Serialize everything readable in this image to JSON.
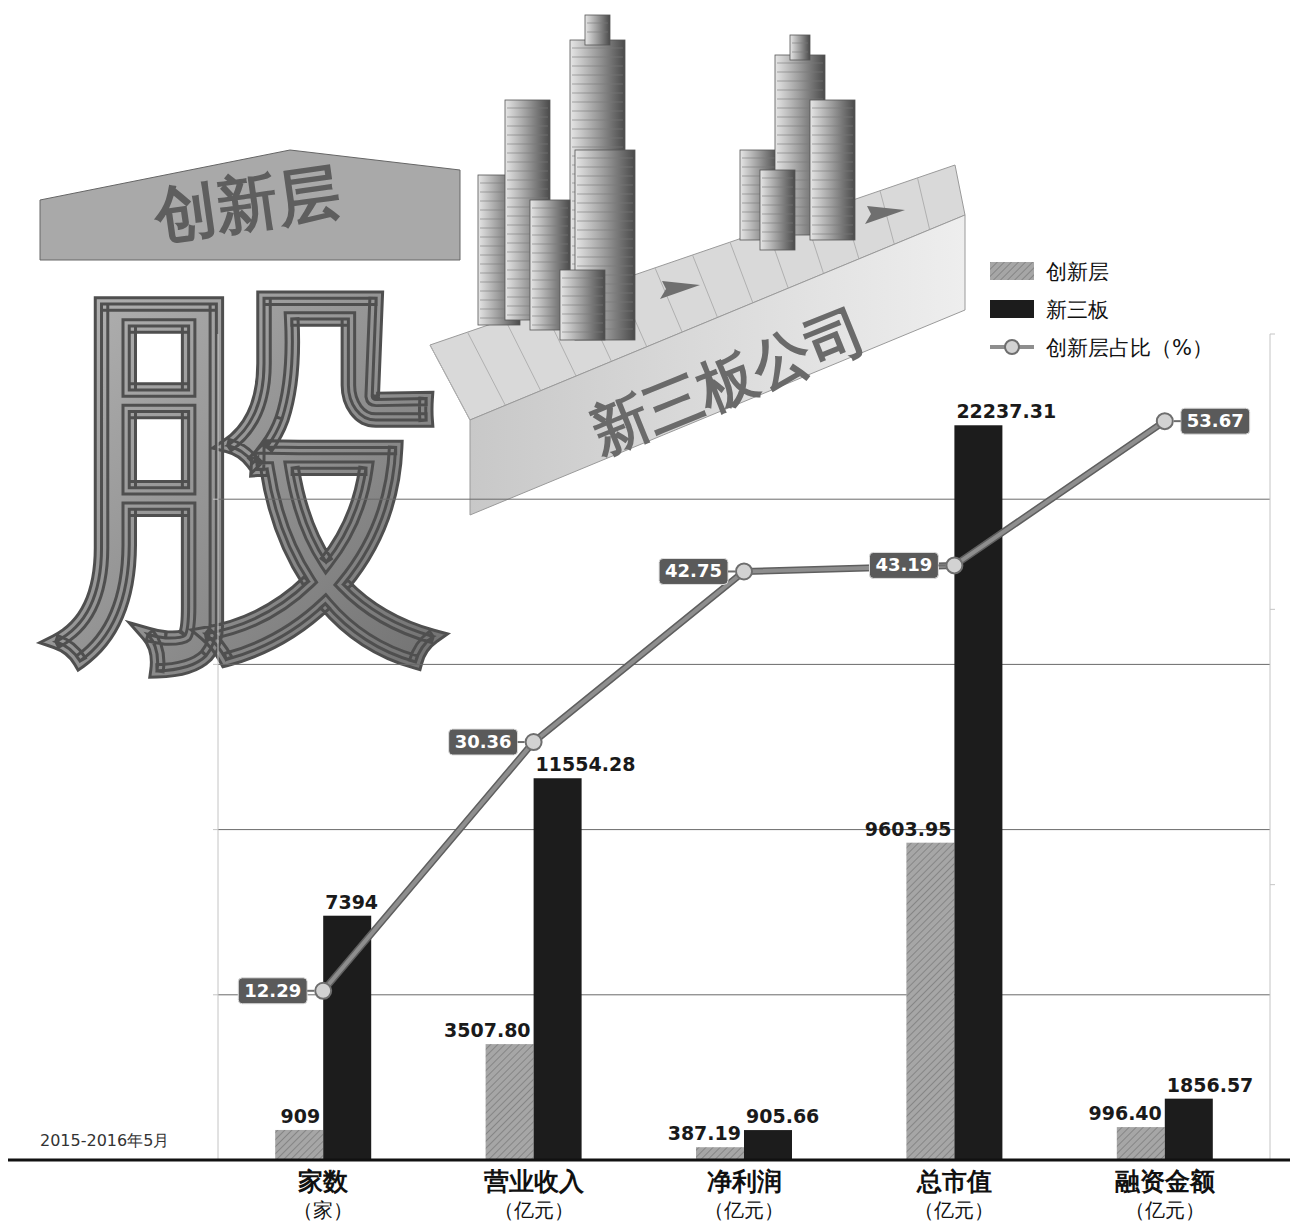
{
  "chart_data": {
    "type": "bar",
    "illustration": {
      "block_top": "创新层",
      "block_main": "股",
      "conveyor": "新三板公司"
    },
    "note": "2015-2016年5月",
    "categories": [
      "家数\n（家）",
      "营业收入\n（亿元）",
      "净利润\n（亿元）",
      "总市值\n（亿元）",
      "融资金额\n（亿元）"
    ],
    "series": [
      {
        "name": "创新层",
        "color": "#a6a6a6",
        "values": [
          909,
          3507.8,
          387.19,
          9603.95,
          996.4
        ],
        "value_labels": [
          "909",
          "3507.80",
          "387.19",
          "9603.95",
          "996.40"
        ]
      },
      {
        "name": "新三板",
        "color": "#1c1c1c",
        "values": [
          7394,
          11554.28,
          905.66,
          22237.31,
          1856.57
        ],
        "value_labels": [
          "7394",
          "11554.28",
          "905.66",
          "22237.31",
          "1856.57"
        ]
      },
      {
        "name": "创新层占比（%）",
        "type": "line",
        "axis": "y2",
        "color": "#8e8e8e",
        "marker": "circle",
        "values": [
          12.29,
          30.36,
          42.75,
          43.19,
          53.67
        ]
      }
    ],
    "ylim": [
      0,
      25000
    ],
    "yticks": [
      0,
      5000,
      10000,
      15000,
      20000
    ],
    "y2lim": [
      0,
      60
    ],
    "y2ticks": [
      0,
      20,
      40,
      60
    ],
    "grid": true,
    "tick_labels": false,
    "data_labels": true,
    "legend": "top-right"
  }
}
